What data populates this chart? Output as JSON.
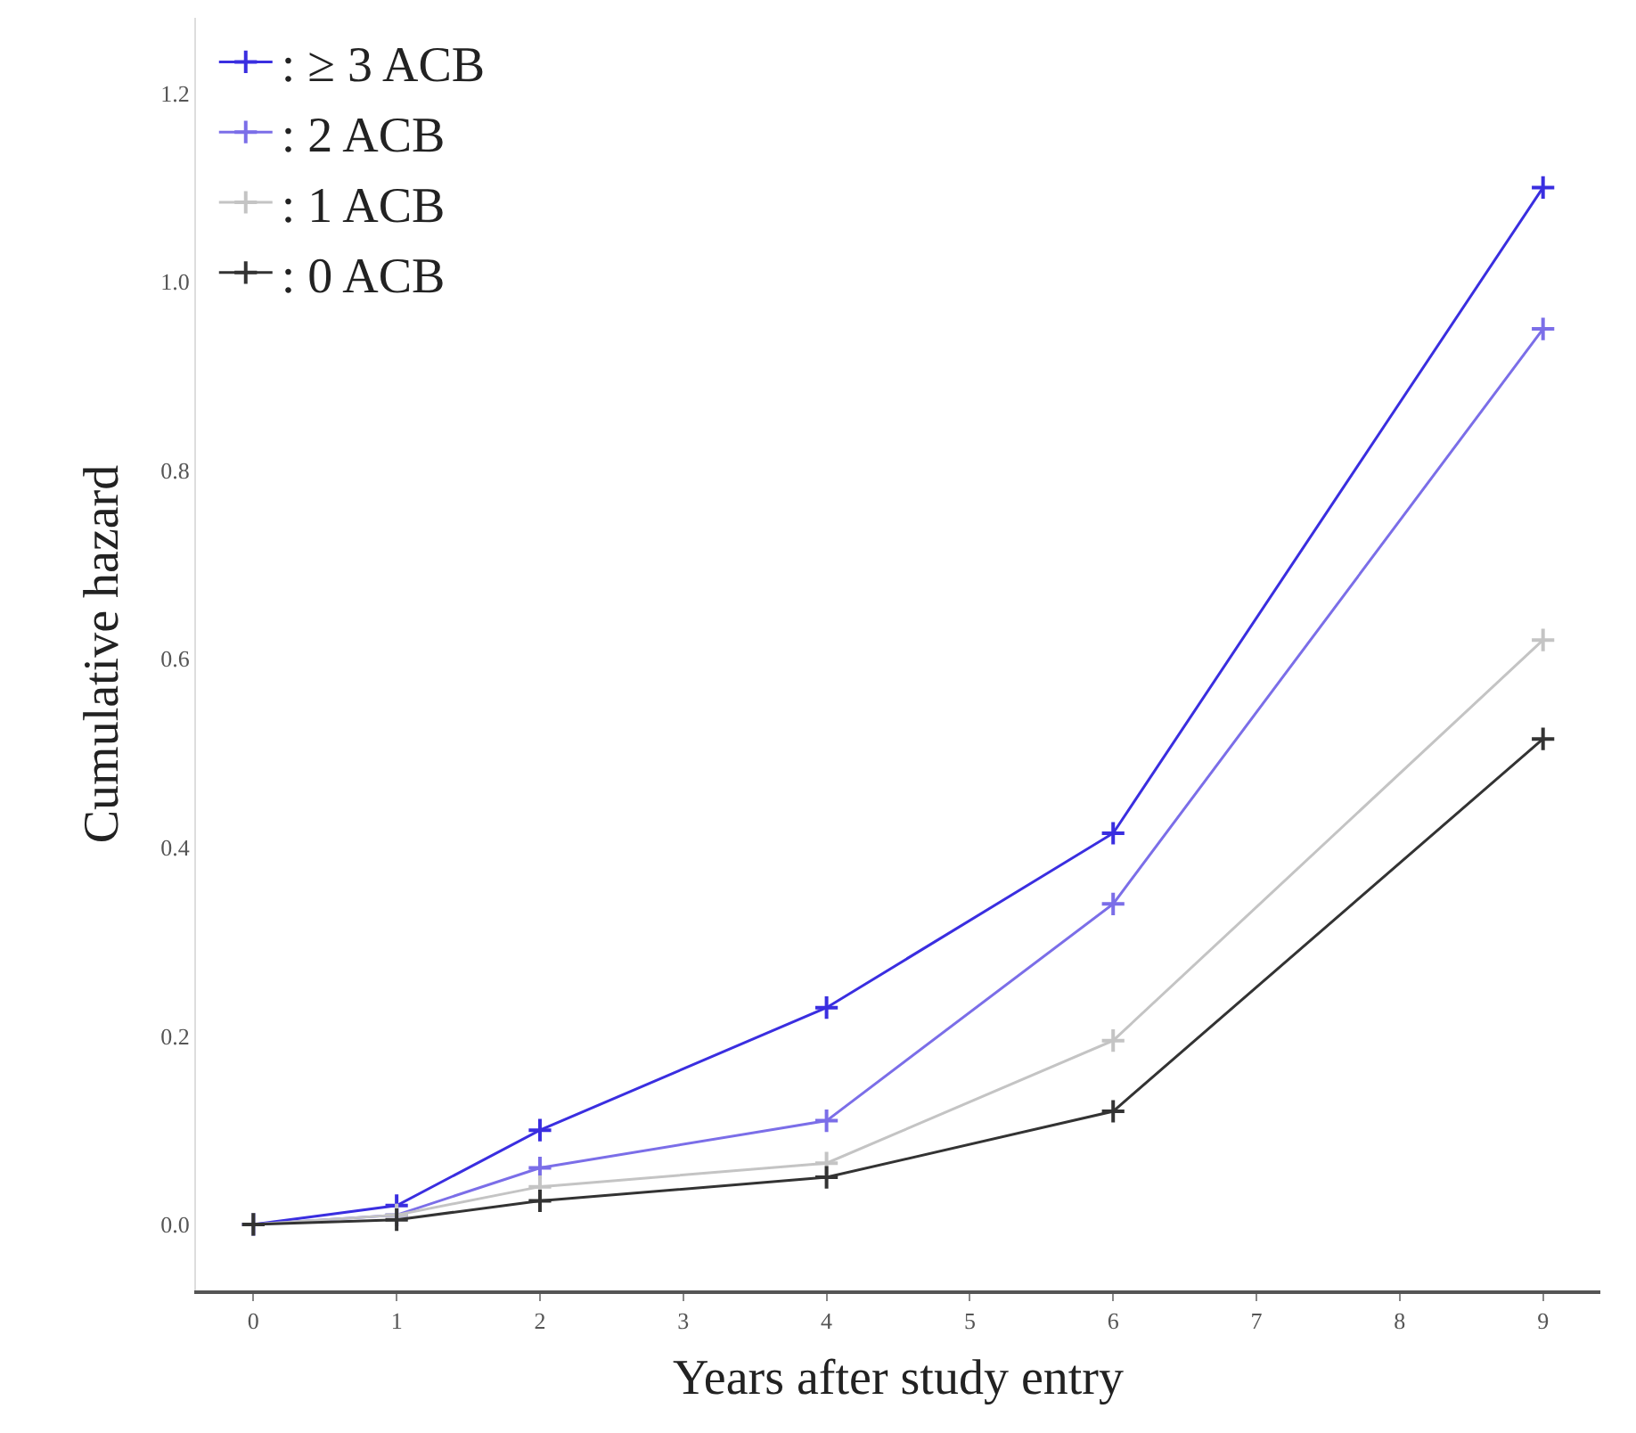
{
  "chart_data": {
    "type": "line",
    "xlabel": "Years after study entry",
    "ylabel": "Cumulative hazard",
    "xlim": [
      -0.4,
      9.4
    ],
    "xticks": [
      0,
      1,
      2,
      3,
      4,
      5,
      6,
      7,
      8,
      9
    ],
    "ylim": [
      -0.07,
      1.28
    ],
    "yticks": [
      {
        "value": 0,
        "label": "0.0"
      },
      0.2,
      0.4,
      0.6,
      0.8,
      {
        "value": 1,
        "label": "1.0"
      },
      1.2
    ],
    "legend": "top left",
    "marker": "cross",
    "line_style": "solid",
    "series": [
      {
        "name": ": ≥ 3 ACB",
        "color": "#3a2ee0",
        "x": [
          0,
          1,
          2,
          4,
          6,
          9
        ],
        "values": [
          0.0,
          0.02,
          0.1,
          0.23,
          0.415,
          1.1
        ]
      },
      {
        "name": ": 2 ACB",
        "color": "#7b6ee8",
        "x": [
          0,
          1,
          2,
          4,
          6,
          9
        ],
        "values": [
          0.0,
          0.01,
          0.06,
          0.11,
          0.34,
          0.95
        ]
      },
      {
        "name": ": 1 ACB",
        "color": "#c4c4c4",
        "x": [
          0,
          1,
          2,
          4,
          6,
          9
        ],
        "values": [
          0.0,
          0.01,
          0.04,
          0.065,
          0.195,
          0.62
        ]
      },
      {
        "name": ": 0 ACB",
        "color": "#333333",
        "x": [
          0,
          1,
          2,
          4,
          6,
          9
        ],
        "values": [
          0.0,
          0.005,
          0.025,
          0.05,
          0.12,
          0.515
        ]
      }
    ]
  }
}
